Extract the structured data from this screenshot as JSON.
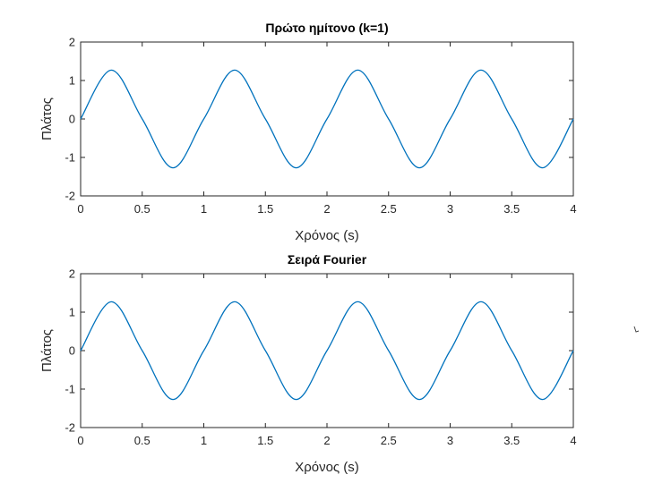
{
  "chart_data": [
    {
      "type": "line",
      "title": "Πρώτο ημίτονο (k=1)",
      "xlabel": "Χρόνος (s)",
      "ylabel": "Πλάτος",
      "xlim": [
        0,
        4
      ],
      "ylim": [
        -2,
        2
      ],
      "xticks": [
        "0",
        "0.5",
        "1",
        "1.5",
        "2",
        "2.5",
        "3",
        "3.5",
        "4"
      ],
      "yticks": [
        "-2",
        "-1",
        "0",
        "1",
        "2"
      ],
      "grid": false,
      "line_color": "#0072BD",
      "series": [
        {
          "x": [
            0,
            0.25,
            0.5,
            0.75,
            1.0,
            1.25,
            1.5,
            1.75,
            2.0,
            2.25,
            2.5,
            2.75,
            3.0,
            3.25,
            3.5,
            3.75,
            4.0
          ],
          "values": [
            0,
            1.27,
            0,
            -1.27,
            0,
            1.27,
            0,
            -1.27,
            0,
            1.27,
            0,
            -1.27,
            0,
            1.27,
            0,
            -1.27,
            0
          ]
        }
      ]
    },
    {
      "type": "line",
      "title": "Σειρά Fourier",
      "xlabel": "Χρόνος (s)",
      "ylabel": "Πλάτος",
      "xlim": [
        0,
        4
      ],
      "ylim": [
        -2,
        2
      ],
      "xticks": [
        "0",
        "0.5",
        "1",
        "1.5",
        "2",
        "2.5",
        "3",
        "3.5",
        "4"
      ],
      "yticks": [
        "-2",
        "-1",
        "0",
        "1",
        "2"
      ],
      "grid": false,
      "line_color": "#0072BD",
      "series": [
        {
          "x": [
            0,
            0.25,
            0.5,
            0.75,
            1.0,
            1.25,
            1.5,
            1.75,
            2.0,
            2.25,
            2.5,
            2.75,
            3.0,
            3.25,
            3.5,
            3.75,
            4.0
          ],
          "values": [
            0,
            1.27,
            0,
            -1.27,
            0,
            1.27,
            0,
            -1.27,
            0,
            1.27,
            0,
            -1.27,
            0,
            1.27,
            0,
            -1.27,
            0
          ]
        }
      ]
    }
  ]
}
